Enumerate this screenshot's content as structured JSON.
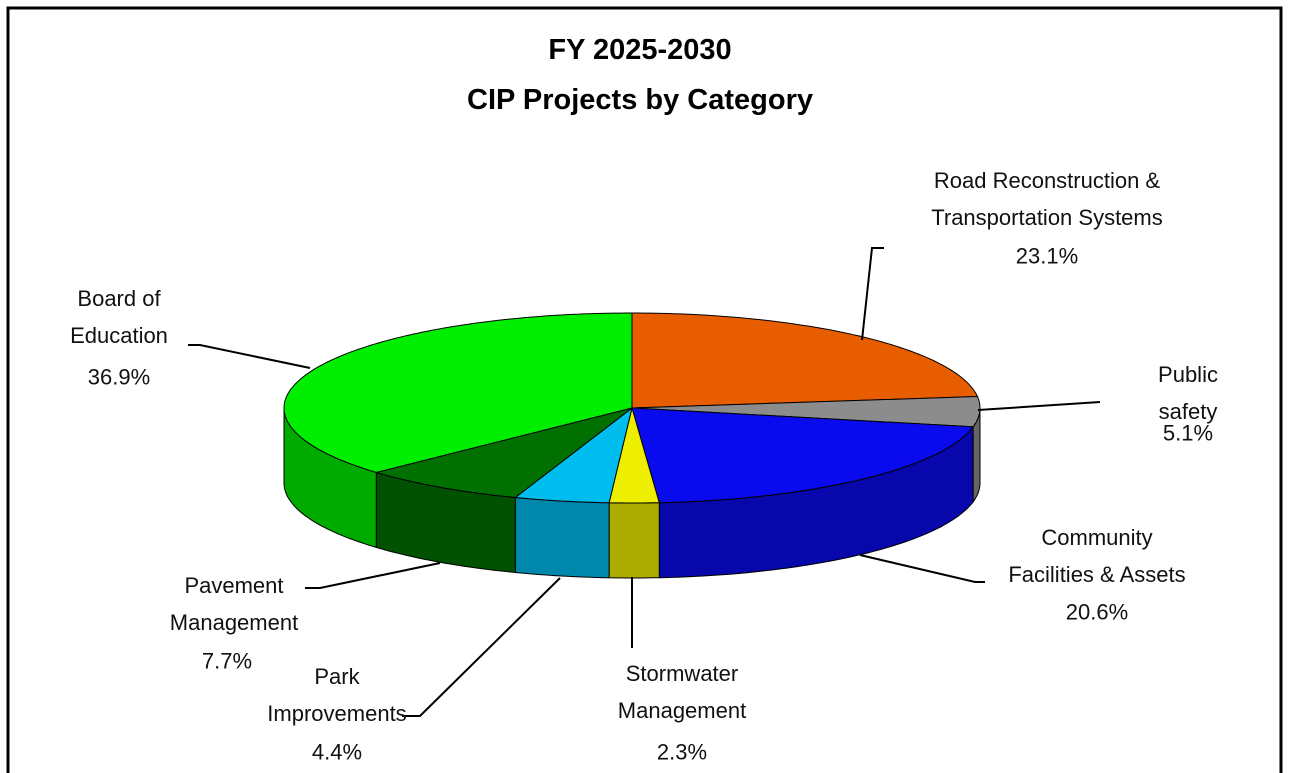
{
  "chart_data": {
    "type": "pie",
    "title": "FY 2025-2030\nCIP Projects by Category",
    "categories": [
      "Road Reconstruction &\nTransportation Systems",
      "Public safety",
      "Community\nFacilities & Assets",
      "Stormwater\nManagement",
      "Park\nImprovements",
      "Pavement\nManagement",
      "Board of\nEducation"
    ],
    "values": [
      23.1,
      5.1,
      20.6,
      2.3,
      4.4,
      7.7,
      36.9
    ],
    "value_labels": [
      "23.1%",
      "5.1%",
      "20.6%",
      "2.3%",
      "4.4%",
      "7.7%",
      "36.9%"
    ],
    "colors": [
      "#e85d00",
      "#8c8c8c",
      "#0a0aee",
      "#eeee00",
      "#00bdef",
      "#007000",
      "#00ee00"
    ],
    "three_d": true
  }
}
